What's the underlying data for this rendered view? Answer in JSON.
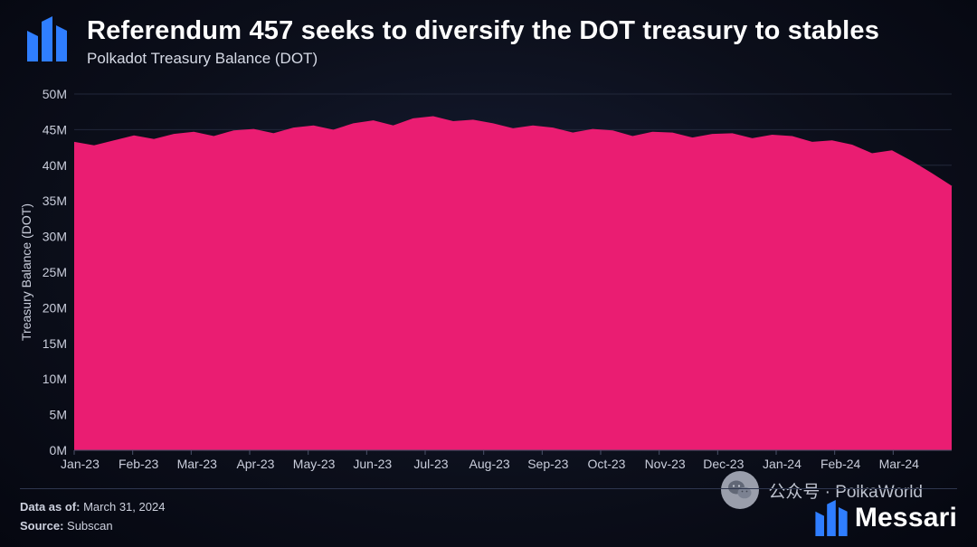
{
  "header": {
    "title": "Referendum 457 seeks to diversify the DOT treasury to stables",
    "subtitle": "Polkadot Treasury Balance (DOT)"
  },
  "chart": {
    "type": "area",
    "series_color": "#ea1d72",
    "background_gradient_inner": "#161d34",
    "background_gradient_outer": "#050710",
    "grid_color": "#22283b",
    "axis_text_color": "#c9cddb",
    "y_axis": {
      "title": "Treasury Balance (DOT)",
      "min": 0,
      "max": 50,
      "ticks": [
        0,
        5,
        10,
        15,
        20,
        25,
        30,
        35,
        40,
        45,
        50
      ],
      "tick_labels": [
        "0M",
        "5M",
        "10M",
        "15M",
        "20M",
        "25M",
        "30M",
        "35M",
        "40M",
        "45M",
        "50M"
      ],
      "label_fontsize": 14,
      "title_fontsize": 14
    },
    "x_axis": {
      "tick_labels": [
        "Jan-23",
        "Feb-23",
        "Mar-23",
        "Apr-23",
        "May-23",
        "Jun-23",
        "Jul-23",
        "Aug-23",
        "Sep-23",
        "Oct-23",
        "Nov-23",
        "Dec-23",
        "Jan-24",
        "Feb-24",
        "Mar-24"
      ],
      "label_fontsize": 14
    },
    "values": [
      43.2,
      42.7,
      43.4,
      44.1,
      43.6,
      44.3,
      44.6,
      44.0,
      44.8,
      45.0,
      44.4,
      45.2,
      45.5,
      44.9,
      45.8,
      46.2,
      45.5,
      46.5,
      46.8,
      46.1,
      46.3,
      45.8,
      45.1,
      45.5,
      45.2,
      44.5,
      45.0,
      44.8,
      44.0,
      44.6,
      44.5,
      43.8,
      44.3,
      44.4,
      43.7,
      44.2,
      44.0,
      43.2,
      43.4,
      42.8,
      41.6,
      42.0,
      40.5,
      38.8,
      37.0
    ],
    "title_fontsize": 29,
    "subtitle_fontsize": 17
  },
  "footer": {
    "data_as_of_label": "Data as of:",
    "data_as_of_value": "March 31, 2024",
    "source_label": "Source:",
    "source_value": "Subscan",
    "brand": "Messari",
    "brand_color": "#2f7eff"
  },
  "watermark": {
    "text": "公众号 · PolkaWorld"
  }
}
